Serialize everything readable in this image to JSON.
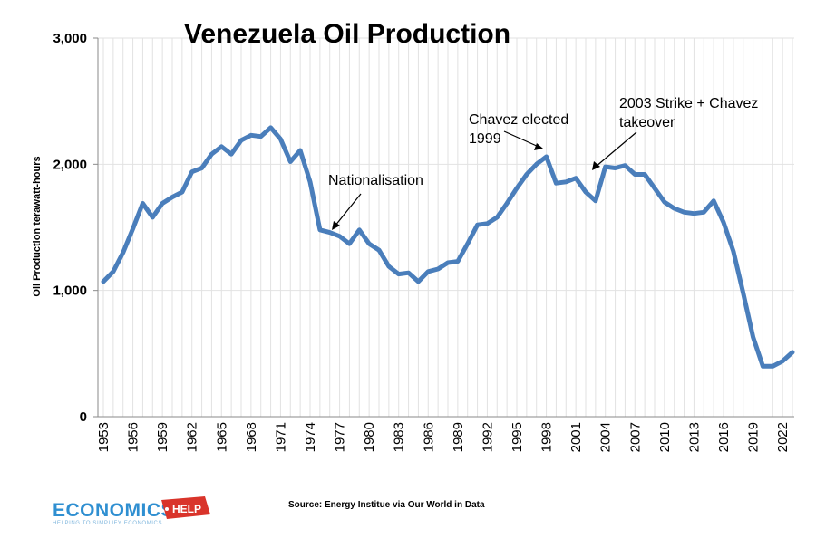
{
  "chart_data": {
    "type": "line",
    "title": "Venezuela Oil Production",
    "ylabel": "Oil Production terawatt-hours",
    "xlabel": "",
    "ylim": [
      0,
      3000
    ],
    "yticks": [
      0,
      1000,
      2000,
      3000
    ],
    "ytick_labels": [
      "0",
      "1,000",
      "2,000",
      "3,000"
    ],
    "xlim": [
      1953,
      2023
    ],
    "xticks": [
      1953,
      1956,
      1959,
      1962,
      1965,
      1968,
      1971,
      1974,
      1977,
      1980,
      1983,
      1986,
      1989,
      1992,
      1995,
      1998,
      2001,
      2004,
      2007,
      2010,
      2013,
      2016,
      2019,
      2022
    ],
    "grid": "vertical gridline per year, horizontal gridline per y tick",
    "series": [
      {
        "name": "Oil Production",
        "color": "#4a7ebb",
        "x": [
          1953,
          1954,
          1955,
          1956,
          1957,
          1958,
          1959,
          1960,
          1961,
          1962,
          1963,
          1964,
          1965,
          1966,
          1967,
          1968,
          1969,
          1970,
          1971,
          1972,
          1973,
          1974,
          1975,
          1976,
          1977,
          1978,
          1979,
          1980,
          1981,
          1982,
          1983,
          1984,
          1985,
          1986,
          1987,
          1988,
          1989,
          1990,
          1991,
          1992,
          1993,
          1994,
          1995,
          1996,
          1997,
          1998,
          1999,
          2000,
          2001,
          2002,
          2003,
          2004,
          2005,
          2006,
          2007,
          2008,
          2009,
          2010,
          2011,
          2012,
          2013,
          2014,
          2015,
          2016,
          2017,
          2018,
          2019,
          2020,
          2021,
          2022,
          2023
        ],
        "values": [
          1070,
          1150,
          1300,
          1490,
          1690,
          1580,
          1690,
          1740,
          1780,
          1940,
          1970,
          2080,
          2140,
          2080,
          2190,
          2230,
          2220,
          2290,
          2200,
          2020,
          2110,
          1860,
          1480,
          1460,
          1430,
          1370,
          1480,
          1370,
          1320,
          1190,
          1130,
          1140,
          1070,
          1150,
          1170,
          1220,
          1230,
          1370,
          1520,
          1530,
          1580,
          1690,
          1810,
          1920,
          2000,
          2060,
          1850,
          1860,
          1890,
          1780,
          1710,
          1980,
          1970,
          1990,
          1920,
          1920,
          1810,
          1700,
          1650,
          1620,
          1610,
          1620,
          1710,
          1540,
          1310,
          980,
          630,
          400,
          400,
          440,
          510
        ]
      }
    ],
    "annotations": [
      {
        "text": "Nationalisation",
        "points_to": 1976
      },
      {
        "text": "Chavez elected",
        "text2": "1999",
        "points_to": 1998
      },
      {
        "text": "2003 Strike + Chavez",
        "text2": "takeover",
        "points_to": 2003
      }
    ]
  },
  "source_text": "Source: Energy Institue via Our World in Data",
  "logo": {
    "main": "ECONOMICS",
    "badge": "HELP",
    "tagline": "HELPING TO SIMPLIFY ECONOMICS"
  }
}
